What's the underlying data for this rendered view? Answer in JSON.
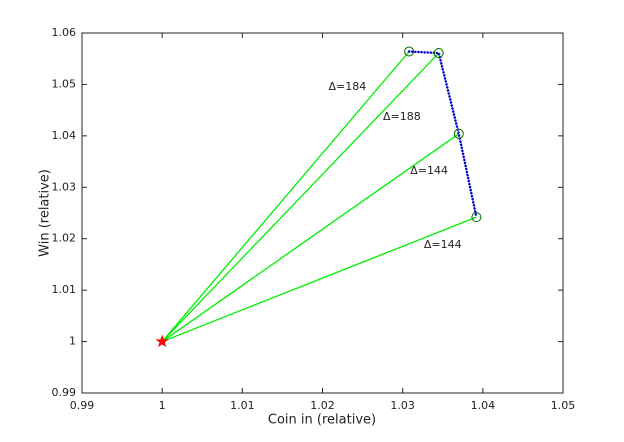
{
  "chart_data": {
    "type": "line",
    "xlabel": "Coin in (relative)",
    "ylabel": "Win (relative)",
    "xlim": [
      0.99,
      1.05
    ],
    "ylim": [
      0.99,
      1.06
    ],
    "xticks": [
      0.99,
      1,
      1.01,
      1.02,
      1.03,
      1.04,
      1.05
    ],
    "yticks": [
      0.99,
      1,
      1.01,
      1.02,
      1.03,
      1.04,
      1.05,
      1.06
    ],
    "grid": false,
    "frontier": {
      "color": "#0000cc",
      "marker_color": "#006600",
      "x": [
        1.0308,
        1.0345,
        1.037,
        1.0392
      ],
      "values": [
        1.0564,
        1.0561,
        1.0404,
        1.0242
      ]
    },
    "origin": {
      "color": "#ff0000",
      "x": 1,
      "value": 1
    },
    "ray_color": "#00ee00",
    "annotations": [
      {
        "text": "Δ=184",
        "x": 1.0231,
        "y": 1.0495
      },
      {
        "text": "Δ=188",
        "x": 1.0299,
        "y": 1.0437
      },
      {
        "text": "Δ=144",
        "x": 1.0333,
        "y": 1.0332
      },
      {
        "text": "Δ=144",
        "x": 1.035,
        "y": 1.0188
      }
    ]
  }
}
